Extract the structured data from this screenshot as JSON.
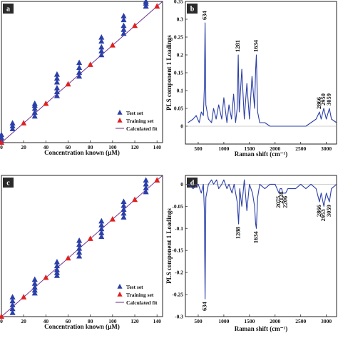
{
  "chart_data": [
    {
      "panel": "a",
      "type": "scatter",
      "xlabel": "Concentration known (µM)",
      "ylabel": "",
      "xlim": [
        0,
        145
      ],
      "ylim": [
        0,
        145
      ],
      "x_ticks": [
        "0",
        "20",
        "40",
        "60",
        "80",
        "100",
        "120",
        "140"
      ],
      "legend_position": "bottom-right",
      "series": [
        {
          "name": "Test set",
          "color": "#2b3fa8",
          "marker": "triangle",
          "x": [
            0,
            0,
            0,
            10,
            10,
            10,
            30,
            30,
            30,
            30,
            30,
            50,
            50,
            50,
            50,
            50,
            50,
            70,
            70,
            70,
            70,
            90,
            90,
            90,
            90,
            90,
            110,
            110,
            110,
            110,
            110,
            130,
            130,
            130
          ],
          "y": [
            2,
            5,
            8,
            14,
            17,
            20,
            27,
            31,
            35,
            38,
            40,
            48,
            52,
            56,
            62,
            66,
            70,
            68,
            72,
            77,
            82,
            90,
            94,
            98,
            104,
            108,
            112,
            116,
            120,
            126,
            130,
            140,
            143,
            145
          ]
        },
        {
          "name": "Training set",
          "color": "#e02020",
          "marker": "triangle",
          "x": [
            0,
            20,
            40,
            60,
            80,
            100,
            120,
            140
          ],
          "y": [
            0,
            20,
            40,
            60,
            80,
            100,
            120,
            140
          ]
        },
        {
          "name": "Calculated fit",
          "color": "#6a2a8a",
          "type": "line",
          "x": [
            0,
            145
          ],
          "y": [
            0,
            145
          ]
        }
      ]
    },
    {
      "panel": "b",
      "type": "line",
      "xlabel": "Raman shift (cm⁻¹)",
      "ylabel": "PLS component 1 Loadings",
      "xlim": [
        250,
        3200
      ],
      "ylim": [
        -0.05,
        0.35
      ],
      "x_ticks": [
        "500",
        "1000",
        "1500",
        "2000",
        "2500",
        "3000"
      ],
      "y_ticks": [
        "0",
        "0.05",
        "0.1",
        "0.15",
        "0.2",
        "0.25",
        "0.3",
        "0.35"
      ],
      "peak_labels": [
        "634",
        "1281",
        "1634",
        "2866",
        "2950",
        "3059"
      ],
      "series": [
        {
          "color": "#2b3fa8",
          "x": [
            300,
            400,
            460,
            520,
            560,
            600,
            620,
            634,
            650,
            700,
            760,
            800,
            850,
            900,
            960,
            1000,
            1060,
            1100,
            1150,
            1190,
            1230,
            1260,
            1281,
            1300,
            1350,
            1400,
            1450,
            1500,
            1550,
            1600,
            1620,
            1634,
            1660,
            1700,
            1800,
            1900,
            2000,
            2100,
            2200,
            2300,
            2400,
            2500,
            2600,
            2700,
            2800,
            2866,
            2900,
            2950,
            3000,
            3059,
            3100,
            3200
          ],
          "y": [
            0.01,
            0.02,
            0.03,
            0.01,
            0.04,
            0.03,
            0.11,
            0.29,
            0.06,
            0.02,
            0.01,
            0.05,
            0.02,
            0.06,
            0.02,
            0.08,
            0.01,
            0.06,
            0.02,
            0.09,
            0.01,
            0.05,
            0.2,
            0.04,
            0.16,
            0.02,
            0.12,
            0.02,
            0.14,
            0.05,
            0.16,
            0.2,
            0.04,
            0.01,
            0.01,
            0.0,
            0.0,
            0.0,
            0.0,
            0.0,
            0.0,
            0.0,
            0.0,
            0.01,
            0.02,
            0.04,
            0.02,
            0.05,
            0.02,
            0.05,
            0.02,
            0.01
          ]
        }
      ]
    },
    {
      "panel": "c",
      "type": "scatter",
      "xlabel": "Concentration known (µM)",
      "ylabel": "",
      "xlim": [
        0,
        145
      ],
      "ylim": [
        0,
        145
      ],
      "x_ticks": [
        "0",
        "20",
        "40",
        "60",
        "80",
        "100",
        "120",
        "140"
      ],
      "legend_position": "bottom-right",
      "series": [
        {
          "name": "Test set",
          "color": "#2b3fa8",
          "marker": "triangle",
          "x": [
            10,
            10,
            10,
            10,
            10,
            30,
            30,
            30,
            30,
            30,
            50,
            50,
            50,
            50,
            50,
            70,
            70,
            70,
            70,
            70,
            90,
            90,
            90,
            90,
            90,
            110,
            110,
            110,
            110,
            110,
            130,
            130,
            130,
            130
          ],
          "y": [
            4,
            8,
            12,
            16,
            20,
            24,
            27,
            30,
            34,
            38,
            42,
            45,
            48,
            52,
            56,
            62,
            66,
            70,
            74,
            78,
            82,
            86,
            90,
            94,
            98,
            102,
            106,
            110,
            114,
            118,
            128,
            132,
            136,
            140
          ]
        },
        {
          "name": "Training set",
          "color": "#e02020",
          "marker": "triangle",
          "x": [
            0,
            20,
            40,
            60,
            80,
            100,
            120,
            140
          ],
          "y": [
            0,
            20,
            40,
            60,
            80,
            100,
            120,
            140
          ]
        },
        {
          "name": "Calculated fit",
          "color": "#6a2a8a",
          "type": "line",
          "x": [
            0,
            145
          ],
          "y": [
            0,
            145
          ]
        }
      ]
    },
    {
      "panel": "d",
      "type": "line",
      "xlabel": "Raman shift (cm⁻¹)",
      "ylabel": "PLS component 1 Loadings",
      "xlim": [
        250,
        3200
      ],
      "ylim": [
        -0.3,
        0.02
      ],
      "x_ticks": [
        "500",
        "1000",
        "1500",
        "2000",
        "2500",
        "3000"
      ],
      "y_ticks": [
        "0",
        "-0.05",
        "-0.1",
        "-0.15",
        "-0.2",
        "-0.25",
        "-0.3"
      ],
      "peak_labels": [
        "634",
        "1288",
        "1634",
        "2075",
        "2128",
        "2206",
        "2866",
        "2953",
        "3059"
      ],
      "series": [
        {
          "color": "#2b3fa8",
          "x": [
            300,
            400,
            500,
            560,
            600,
            620,
            634,
            650,
            700,
            760,
            800,
            860,
            900,
            960,
            1000,
            1060,
            1100,
            1160,
            1200,
            1260,
            1288,
            1310,
            1350,
            1400,
            1450,
            1500,
            1560,
            1600,
            1620,
            1634,
            1660,
            1700,
            1800,
            1900,
            2000,
            2075,
            2100,
            2128,
            2150,
            2206,
            2250,
            2300,
            2400,
            2500,
            2600,
            2700,
            2800,
            2866,
            2900,
            2953,
            3000,
            3059,
            3100,
            3200
          ],
          "y": [
            0.0,
            -0.01,
            0.0,
            -0.02,
            0.0,
            -0.06,
            -0.26,
            -0.03,
            0.0,
            0.01,
            0.0,
            0.01,
            -0.01,
            0.0,
            0.01,
            -0.01,
            0.0,
            -0.02,
            0.0,
            -0.04,
            -0.09,
            -0.01,
            -0.05,
            0.01,
            -0.06,
            0.0,
            -0.02,
            -0.05,
            -0.09,
            -0.1,
            -0.03,
            0.0,
            -0.01,
            0.0,
            0.0,
            -0.02,
            -0.01,
            -0.01,
            -0.02,
            -0.02,
            -0.01,
            -0.01,
            -0.01,
            0.0,
            -0.01,
            0.0,
            -0.01,
            -0.04,
            -0.02,
            -0.05,
            -0.02,
            -0.04,
            -0.01,
            0.0
          ]
        }
      ]
    }
  ]
}
